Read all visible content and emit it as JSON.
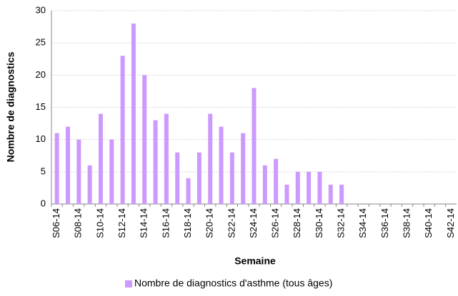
{
  "chart_data": {
    "type": "bar",
    "xlabel": "Semaine",
    "ylabel": "Nombre de diagnostics",
    "categories": [
      "S06-14",
      null,
      "S08-14",
      null,
      "S10-14",
      null,
      "S12-14",
      null,
      "S14-14",
      null,
      "S16-14",
      null,
      "S18-14",
      null,
      "S20-14",
      null,
      "S22-14",
      null,
      "S24-14",
      null,
      "S26-14",
      null,
      "S28-14",
      null,
      "S30-14",
      null,
      "S32-14",
      null,
      "S34-14",
      null,
      "S36-14",
      null,
      "S38-14",
      null,
      "S40-14",
      null,
      "S42-14"
    ],
    "series": [
      {
        "name": "Nombre de diagnostics d'asthme (tous âges)",
        "color": "#cc99ff",
        "values": [
          11,
          12,
          10,
          6,
          14,
          10,
          23,
          28,
          20,
          13,
          14,
          8,
          4,
          8,
          14,
          12,
          8,
          11,
          18,
          6,
          7,
          3,
          5,
          5,
          5,
          3,
          3,
          0,
          0,
          0,
          0,
          0,
          0,
          0,
          0,
          0,
          0
        ]
      }
    ],
    "ylim": [
      0,
      30
    ],
    "yticks": [
      0,
      5,
      10,
      15,
      20,
      25,
      30
    ],
    "grid": true,
    "legend": "bottom"
  }
}
